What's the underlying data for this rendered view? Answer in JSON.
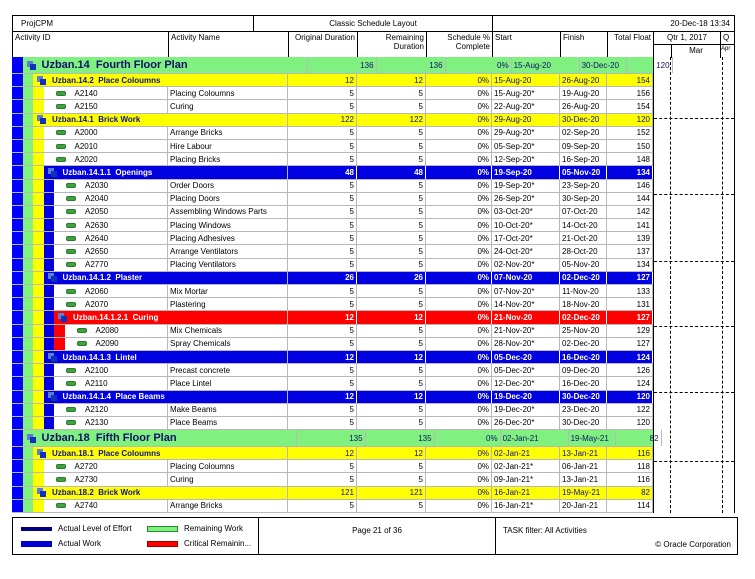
{
  "header": {
    "project": "ProjCPM",
    "layout_title": "Classic Schedule Layout",
    "datetime": "20-Dec-18 13:34"
  },
  "columns": {
    "activity_id": "Activity ID",
    "activity_name": "Activity Name",
    "original_duration": "Original Duration",
    "remaining_duration": "Remaining Duration",
    "schedule_pct": "Schedule % Complete",
    "start": "Start",
    "finish": "Finish",
    "total_float": "Total Float"
  },
  "timescale": {
    "quarter": "Qtr 1, 2017",
    "quarter_next": "Q",
    "month": "Mar",
    "month_next": "Apr"
  },
  "colors": {
    "level0": "#0000ff",
    "green": "#80f080",
    "yellow": "#ffff00",
    "blue": "#0000e0",
    "red": "#ff0000"
  },
  "rows": [
    {
      "t": "w",
      "lvl": 1,
      "c": "green",
      "id": "Uzban.14",
      "name": "Fourth Floor Plan",
      "od": "136",
      "rd": "136",
      "pct": "0%",
      "start": "15-Aug-20",
      "finish": "30-Dec-20",
      "tf": "120"
    },
    {
      "t": "w",
      "lvl": 2,
      "c": "yellow",
      "id": "Uzban.14.2",
      "name": "Place Coloumns",
      "od": "12",
      "rd": "12",
      "pct": "0%",
      "start": "15-Aug-20",
      "finish": "26-Aug-20",
      "tf": "154"
    },
    {
      "t": "a",
      "id": "A2140",
      "name": "Placing Coloumns",
      "od": "5",
      "rd": "5",
      "pct": "0%",
      "start": "15-Aug-20*",
      "finish": "19-Aug-20",
      "tf": "156"
    },
    {
      "t": "a",
      "id": "A2150",
      "name": "Curing",
      "od": "5",
      "rd": "5",
      "pct": "0%",
      "start": "22-Aug-20*",
      "finish": "26-Aug-20",
      "tf": "154"
    },
    {
      "t": "w",
      "lvl": 2,
      "c": "yellow",
      "id": "Uzban.14.1",
      "name": "Brick Work",
      "od": "122",
      "rd": "122",
      "pct": "0%",
      "start": "29-Aug-20",
      "finish": "30-Dec-20",
      "tf": "120"
    },
    {
      "t": "a",
      "id": "A2000",
      "name": "Arrange Bricks",
      "od": "5",
      "rd": "5",
      "pct": "0%",
      "start": "29-Aug-20*",
      "finish": "02-Sep-20",
      "tf": "152"
    },
    {
      "t": "a",
      "id": "A2010",
      "name": "Hire Labour",
      "od": "5",
      "rd": "5",
      "pct": "0%",
      "start": "05-Sep-20*",
      "finish": "09-Sep-20",
      "tf": "150"
    },
    {
      "t": "a",
      "id": "A2020",
      "name": "Placing Bricks",
      "od": "5",
      "rd": "5",
      "pct": "0%",
      "start": "12-Sep-20*",
      "finish": "16-Sep-20",
      "tf": "148"
    },
    {
      "t": "w",
      "lvl": 3,
      "c": "blue",
      "id": "Uzban.14.1.1",
      "name": "Openings",
      "od": "48",
      "rd": "48",
      "pct": "0%",
      "start": "19-Sep-20",
      "finish": "05-Nov-20",
      "tf": "134"
    },
    {
      "t": "a",
      "id": "A2030",
      "name": "Order Doors",
      "od": "5",
      "rd": "5",
      "pct": "0%",
      "start": "19-Sep-20*",
      "finish": "23-Sep-20",
      "tf": "146"
    },
    {
      "t": "a",
      "id": "A2040",
      "name": "Placing Doors",
      "od": "5",
      "rd": "5",
      "pct": "0%",
      "start": "26-Sep-20*",
      "finish": "30-Sep-20",
      "tf": "144"
    },
    {
      "t": "a",
      "id": "A2050",
      "name": "Assembling Windows Parts",
      "od": "5",
      "rd": "5",
      "pct": "0%",
      "start": "03-Oct-20*",
      "finish": "07-Oct-20",
      "tf": "142"
    },
    {
      "t": "a",
      "id": "A2630",
      "name": "Placing Windows",
      "od": "5",
      "rd": "5",
      "pct": "0%",
      "start": "10-Oct-20*",
      "finish": "14-Oct-20",
      "tf": "141"
    },
    {
      "t": "a",
      "id": "A2640",
      "name": "Placing Adhesives",
      "od": "5",
      "rd": "5",
      "pct": "0%",
      "start": "17-Oct-20*",
      "finish": "21-Oct-20",
      "tf": "139"
    },
    {
      "t": "a",
      "id": "A2650",
      "name": "Arrange Ventilators",
      "od": "5",
      "rd": "5",
      "pct": "0%",
      "start": "24-Oct-20*",
      "finish": "28-Oct-20",
      "tf": "137"
    },
    {
      "t": "a",
      "id": "A2770",
      "name": "Placing Ventilators",
      "od": "5",
      "rd": "5",
      "pct": "0%",
      "start": "02-Nov-20*",
      "finish": "05-Nov-20",
      "tf": "134"
    },
    {
      "t": "w",
      "lvl": 3,
      "c": "blue",
      "id": "Uzban.14.1.2",
      "name": "Plaster",
      "od": "26",
      "rd": "26",
      "pct": "0%",
      "start": "07-Nov-20",
      "finish": "02-Dec-20",
      "tf": "127"
    },
    {
      "t": "a",
      "id": "A2060",
      "name": "Mix Mortar",
      "od": "5",
      "rd": "5",
      "pct": "0%",
      "start": "07-Nov-20*",
      "finish": "11-Nov-20",
      "tf": "133"
    },
    {
      "t": "a",
      "id": "A2070",
      "name": "Plastering",
      "od": "5",
      "rd": "5",
      "pct": "0%",
      "start": "14-Nov-20*",
      "finish": "18-Nov-20",
      "tf": "131"
    },
    {
      "t": "w",
      "lvl": 4,
      "c": "red",
      "id": "Uzban.14.1.2.1",
      "name": "Curing",
      "od": "12",
      "rd": "12",
      "pct": "0%",
      "start": "21-Nov-20",
      "finish": "02-Dec-20",
      "tf": "127"
    },
    {
      "t": "a",
      "id": "A2080",
      "name": "Mix Chemicals",
      "od": "5",
      "rd": "5",
      "pct": "0%",
      "start": "21-Nov-20*",
      "finish": "25-Nov-20",
      "tf": "129"
    },
    {
      "t": "a",
      "id": "A2090",
      "name": "Spray Chemicals",
      "od": "5",
      "rd": "5",
      "pct": "0%",
      "start": "28-Nov-20*",
      "finish": "02-Dec-20",
      "tf": "127"
    },
    {
      "t": "w",
      "lvl": 3,
      "c": "blue",
      "id": "Uzban.14.1.3",
      "name": "Lintel",
      "od": "12",
      "rd": "12",
      "pct": "0%",
      "start": "05-Dec-20",
      "finish": "16-Dec-20",
      "tf": "124"
    },
    {
      "t": "a",
      "id": "A2100",
      "name": "Precast concrete",
      "od": "5",
      "rd": "5",
      "pct": "0%",
      "start": "05-Dec-20*",
      "finish": "09-Dec-20",
      "tf": "126"
    },
    {
      "t": "a",
      "id": "A2110",
      "name": "Place Lintel",
      "od": "5",
      "rd": "5",
      "pct": "0%",
      "start": "12-Dec-20*",
      "finish": "16-Dec-20",
      "tf": "124"
    },
    {
      "t": "w",
      "lvl": 3,
      "c": "blue",
      "id": "Uzban.14.1.4",
      "name": "Place Beams",
      "od": "12",
      "rd": "12",
      "pct": "0%",
      "start": "19-Dec-20",
      "finish": "30-Dec-20",
      "tf": "120"
    },
    {
      "t": "a",
      "id": "A2120",
      "name": "Make Beams",
      "od": "5",
      "rd": "5",
      "pct": "0%",
      "start": "19-Dec-20*",
      "finish": "23-Dec-20",
      "tf": "122"
    },
    {
      "t": "a",
      "id": "A2130",
      "name": "Place Beams",
      "od": "5",
      "rd": "5",
      "pct": "0%",
      "start": "26-Dec-20*",
      "finish": "30-Dec-20",
      "tf": "120"
    },
    {
      "t": "w",
      "lvl": 1,
      "c": "green",
      "id": "Uzban.18",
      "name": "Fifth Floor Plan",
      "od": "135",
      "rd": "135",
      "pct": "0%",
      "start": "02-Jan-21",
      "finish": "19-May-21",
      "tf": "82"
    },
    {
      "t": "w",
      "lvl": 2,
      "c": "yellow",
      "id": "Uzban.18.1",
      "name": "Place Coloumns",
      "od": "12",
      "rd": "12",
      "pct": "0%",
      "start": "02-Jan-21",
      "finish": "13-Jan-21",
      "tf": "116"
    },
    {
      "t": "a",
      "id": "A2720",
      "name": "Placing Coloumns",
      "od": "5",
      "rd": "5",
      "pct": "0%",
      "start": "02-Jan-21*",
      "finish": "06-Jan-21",
      "tf": "118"
    },
    {
      "t": "a",
      "id": "A2730",
      "name": "Curing",
      "od": "5",
      "rd": "5",
      "pct": "0%",
      "start": "09-Jan-21*",
      "finish": "13-Jan-21",
      "tf": "116"
    },
    {
      "t": "w",
      "lvl": 2,
      "c": "yellow",
      "id": "Uzban.18.2",
      "name": "Brick Work",
      "od": "121",
      "rd": "121",
      "pct": "0%",
      "start": "16-Jan-21",
      "finish": "19-May-21",
      "tf": "82"
    },
    {
      "t": "a",
      "id": "A2740",
      "name": "Arrange Bricks",
      "od": "5",
      "rd": "5",
      "pct": "0%",
      "start": "16-Jan-21*",
      "finish": "20-Jan-21",
      "tf": "114"
    }
  ],
  "legend": [
    {
      "label": "Actual Level of Effort",
      "color": "#000080"
    },
    {
      "label": "Actual Work",
      "color": "#0000d0"
    },
    {
      "label": "Remaining Work",
      "color": "#80f080"
    },
    {
      "label": "Critical Remainin...",
      "color": "#ff0000"
    }
  ],
  "footer": {
    "page": "Page 21 of 36",
    "filter": "TASK filter: All Activities",
    "copyright": "© Oracle Corporation"
  }
}
